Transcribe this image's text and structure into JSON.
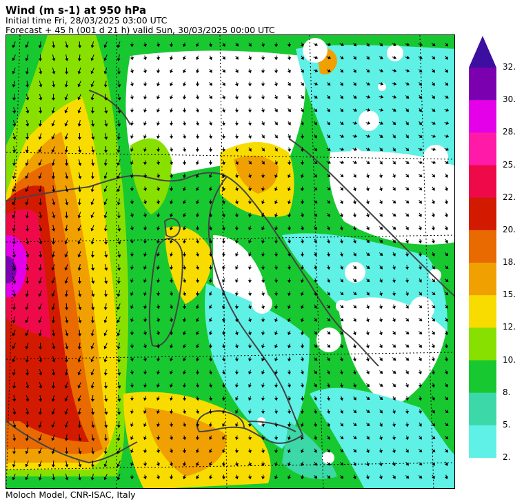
{
  "header": {
    "title": "Wind (m s-1) at 950 hPa",
    "initial_time": "Initial time  Fri, 28/03/2025  03:00 UTC",
    "forecast": "Forecast  +  45 h  (001 d 21 h)  valid Sun, 30/03/2025 00:00 UTC"
  },
  "footer": {
    "credit": "Moloch Model, CNR-ISAC, Italy"
  },
  "legend": {
    "labels": [
      "32.",
      "30.",
      "28.",
      "25.",
      "22.",
      "20.",
      "18.",
      "15.",
      "12.",
      "10.",
      "8.",
      "5.",
      "2."
    ],
    "colors": [
      "#7b00b0",
      "#e400e8",
      "#ff1aa8",
      "#ee0a48",
      "#d21a00",
      "#e86a00",
      "#f0a000",
      "#f8dc00",
      "#88e000",
      "#18c830",
      "#3cd8a8",
      "#5ff0e6"
    ],
    "arrow_color": "#3c0fa0"
  },
  "map": {
    "colors": {
      "low": "#ffffff",
      "cyan": "#5ff0e6",
      "teal": "#3cd8a8",
      "green": "#18c830",
      "lime": "#88e000",
      "yellow": "#f8dc00",
      "gold": "#f0a000",
      "orange": "#e86a00",
      "darkorange": "#d21a00",
      "red": "#ee0a48",
      "magenta": "#e400e8",
      "purple": "#7b00b0"
    }
  }
}
